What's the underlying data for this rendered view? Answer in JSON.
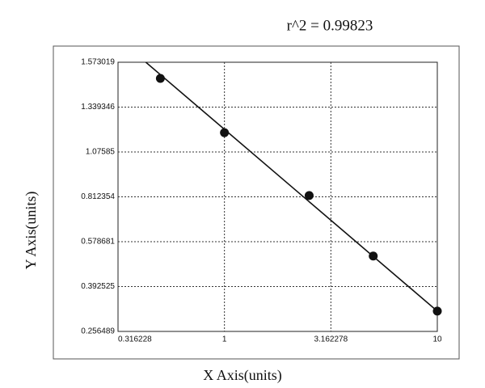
{
  "chart_data": {
    "type": "scatter",
    "title": "r^2 = 0.99823",
    "x_label": "X Axis(units)",
    "y_label": "Y Axis(units)",
    "x_scale": "log",
    "x": [
      0.5,
      1,
      2.5,
      5,
      10
    ],
    "series": [
      {
        "values": [
          1.489,
          1.189,
          0.82,
          0.519,
          0.318
        ],
        "color": "#111111"
      }
    ],
    "fit_line": {
      "x": [
        0.41,
        10
      ],
      "y": [
        1.59,
        0.318
      ],
      "color": "#111111"
    },
    "xlim": [
      0.316228,
      10
    ],
    "xticks": [
      0.316228,
      1,
      3.162278,
      10
    ],
    "ylim": [
      0.256489,
      1.573019
    ],
    "yticks": [
      0.256489,
      0.392525,
      0.578681,
      0.812354,
      1.07585,
      1.339346,
      1.573019
    ],
    "grid": true
  }
}
